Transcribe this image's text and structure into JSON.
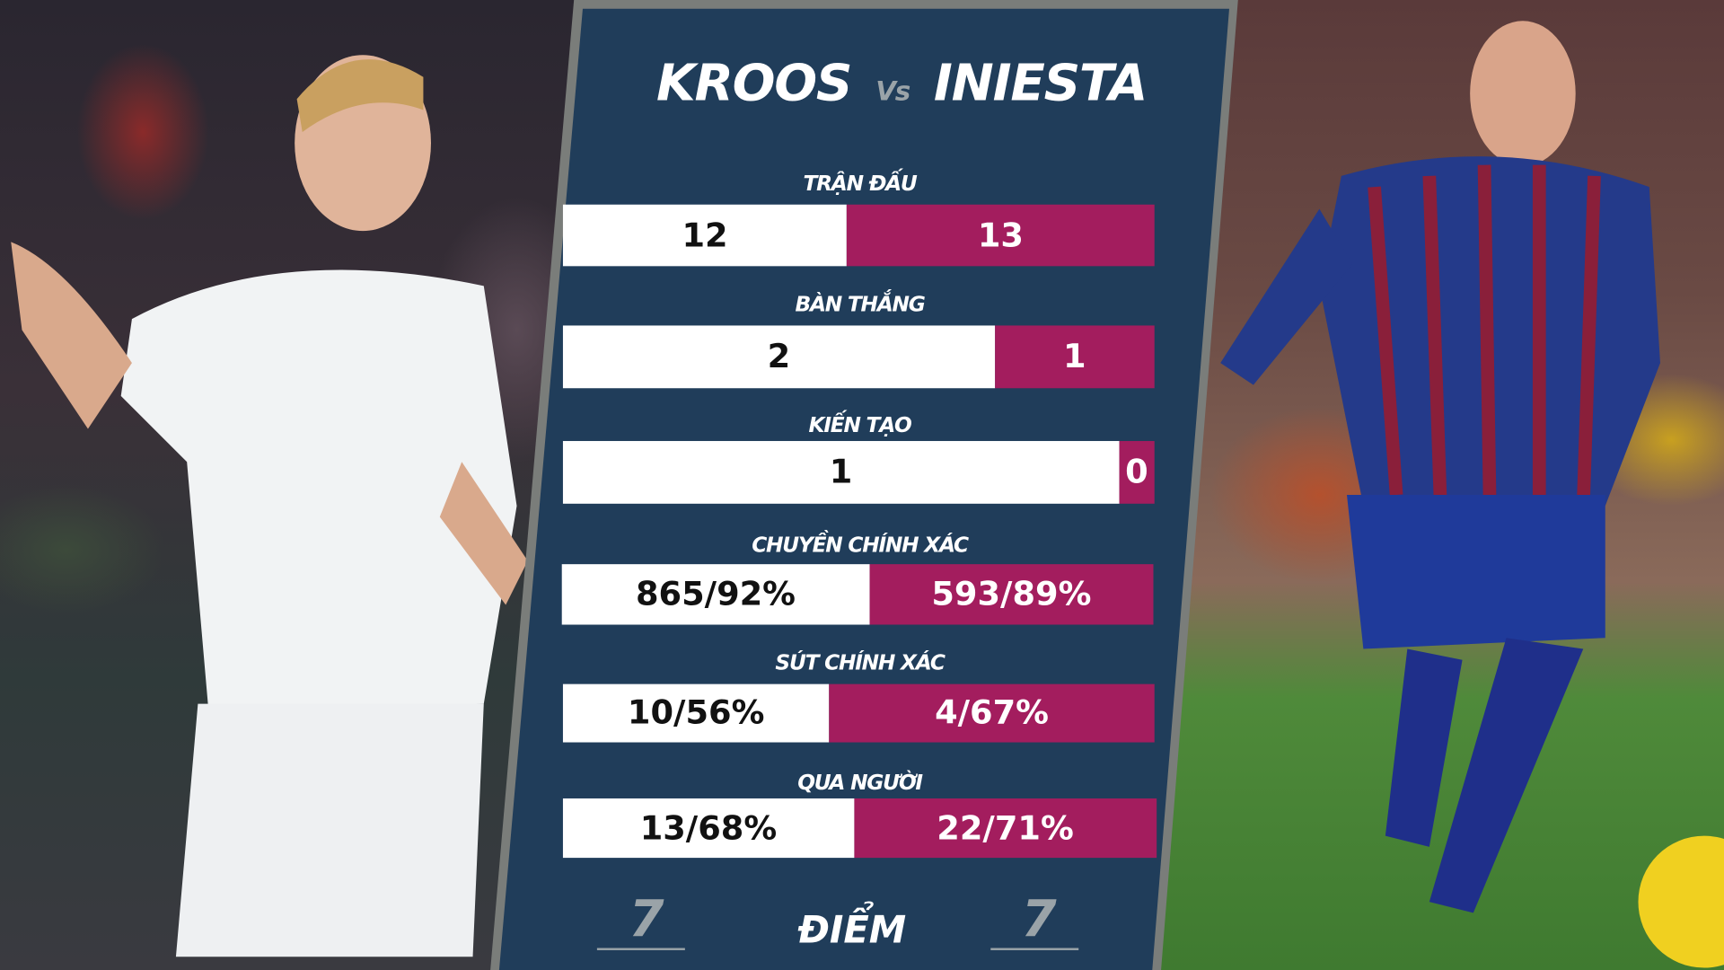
{
  "title": {
    "player_left": "KROOS",
    "vs": "Vs",
    "player_right": "INIESTA"
  },
  "colors": {
    "panel": "#203d5a",
    "left_bar": "#ffffff",
    "right_bar": "#a31d5e",
    "border": "#7a7d7a"
  },
  "stats": [
    {
      "label": "TRẬN ĐẤU",
      "left": "12",
      "right": "13",
      "left_fill_fraction": 0.48
    },
    {
      "label": "BÀN THẮNG",
      "left": "2",
      "right": "1",
      "left_fill_fraction": 0.73
    },
    {
      "label": "KIẾN TẠO",
      "left": "1",
      "right": "0",
      "left_fill_fraction": 0.94
    },
    {
      "label": "CHUYỀN CHÍNH XÁC",
      "left": "865/92%",
      "right": "593/89%",
      "left_fill_fraction": 0.52
    },
    {
      "label": "SÚT CHÍNH XÁC",
      "left": "10/56%",
      "right": "4/67%",
      "left_fill_fraction": 0.45
    },
    {
      "label": "QUA NGƯỜI",
      "left": "13/68%",
      "right": "22/71%",
      "left_fill_fraction": 0.49
    }
  ],
  "rating": {
    "label": "ĐIỂM",
    "left": "7",
    "right": "7"
  }
}
